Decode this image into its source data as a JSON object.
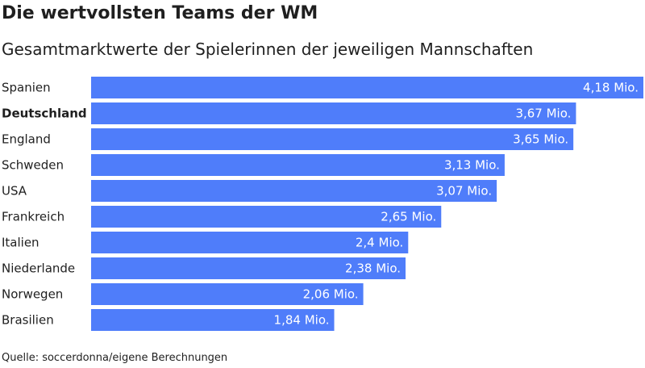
{
  "header": {
    "title": "Die wertvollsten Teams der WM",
    "subtitle": "Gesamtmarktwerte der Spielerinnen der jeweiligen Mannschaften"
  },
  "footer": {
    "source": "Quelle: soccerdonna/eigene Berechnungen"
  },
  "colors": {
    "bar": "#4f7dfa",
    "label_inside": "#ffffff",
    "category_text": "#1f1f1f"
  },
  "chart_data": {
    "type": "bar",
    "orientation": "horizontal",
    "title": "Die wertvollsten Teams der WM",
    "subtitle": "Gesamtmarktwerte der Spielerinnen der jeweiligen Mannschaften",
    "categories": [
      "Spanien",
      "Deutschland",
      "England",
      "Schweden",
      "USA",
      "Frankreich",
      "Italien",
      "Niederlande",
      "Norwegen",
      "Brasilien"
    ],
    "values": [
      4.18,
      3.67,
      3.65,
      3.13,
      3.07,
      2.65,
      2.4,
      2.38,
      2.06,
      1.84
    ],
    "value_labels": [
      "4,18 Mio.",
      "3,67 Mio.",
      "3,65 Mio.",
      "3,13 Mio.",
      "3,07 Mio.",
      "2,65 Mio.",
      "2,4 Mio.",
      "2,38 Mio.",
      "2,06 Mio.",
      "1,84 Mio."
    ],
    "highlighted_category": "Deutschland",
    "xlim": [
      0,
      4.18
    ],
    "grid": false,
    "legend": "none"
  }
}
